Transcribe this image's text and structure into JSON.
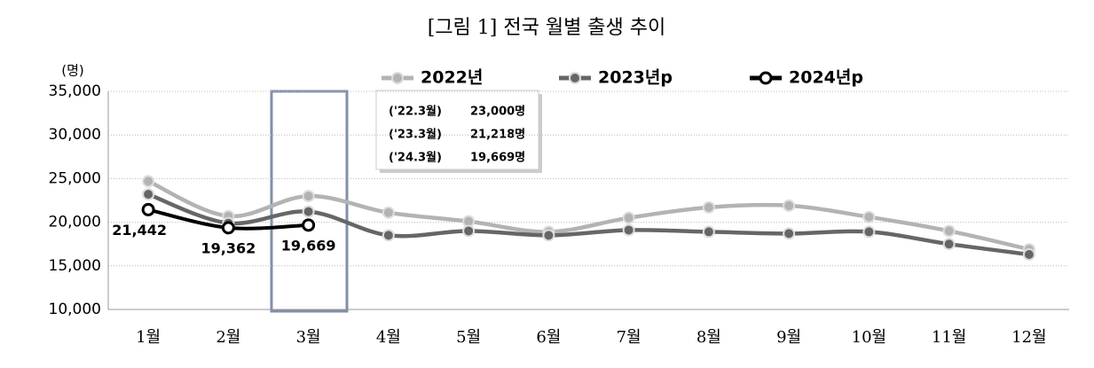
{
  "chart_data": {
    "type": "line",
    "title": "[그림 1] 전국 월별 출생 추이",
    "y_unit": "(명)",
    "categories": [
      "1월",
      "2월",
      "3월",
      "4월",
      "5월",
      "6월",
      "7월",
      "8월",
      "9월",
      "10월",
      "11월",
      "12월"
    ],
    "series": [
      {
        "name": "2022년",
        "color": "#b3b3b3",
        "values": [
          24700,
          20700,
          23000,
          21100,
          20100,
          18900,
          20500,
          21700,
          21900,
          20600,
          19000,
          16900
        ]
      },
      {
        "name": "2023년p",
        "color": "#666666",
        "values": [
          23200,
          19900,
          21218,
          18500,
          19000,
          18500,
          19100,
          18900,
          18700,
          18900,
          17500,
          16300
        ]
      },
      {
        "name": "2024년p",
        "color": "#000000",
        "values": [
          21442,
          19362,
          19669,
          null,
          null,
          null,
          null,
          null,
          null,
          null,
          null,
          null
        ],
        "value_labels": [
          "21,442",
          "19,362",
          "19,669",
          null,
          null,
          null,
          null,
          null,
          null,
          null,
          null,
          null
        ]
      }
    ],
    "annotations": [
      [
        "('22.3월)",
        "23,000명"
      ],
      [
        "('23.3월)",
        "21,218명"
      ],
      [
        "('24.3월)",
        "19,669명"
      ]
    ],
    "ylim": [
      10000,
      35000
    ],
    "yticks": [
      {
        "value": 10000,
        "label": "10,000"
      },
      {
        "value": 15000,
        "label": "15,000"
      },
      {
        "value": 20000,
        "label": "20,000"
      },
      {
        "value": 25000,
        "label": "25,000"
      },
      {
        "value": 30000,
        "label": "30,000"
      },
      {
        "value": 35000,
        "label": "35,000"
      }
    ],
    "grid": true
  }
}
